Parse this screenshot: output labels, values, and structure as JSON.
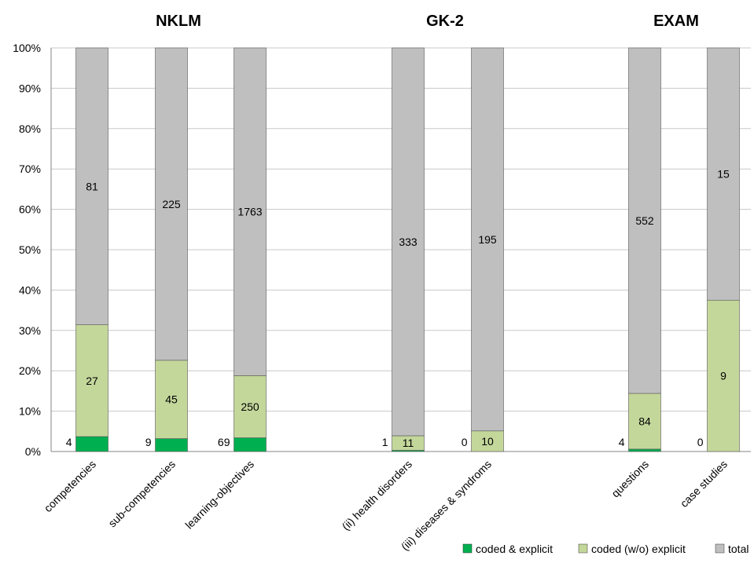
{
  "chart_data": {
    "type": "bar",
    "stacked": true,
    "normalized": true,
    "categories": [
      "competencies",
      "sub-competencies",
      "learning-objectives",
      "(ii) health disorders",
      "(iii) diseases & syndroms",
      "questions",
      "case studies"
    ],
    "group_titles": [
      "NKLM",
      "GK-2",
      "EXAM"
    ],
    "series": [
      {
        "name": "coded & explicit",
        "color": "#00b050",
        "counts": [
          4,
          9,
          69,
          1,
          0,
          4,
          0
        ]
      },
      {
        "name": "coded (w/o) explicit",
        "color": "#c4d79b",
        "counts": [
          27,
          45,
          250,
          11,
          10,
          84,
          9
        ]
      },
      {
        "name": "total",
        "color": "#bfbfbf",
        "counts": [
          81,
          225,
          1763,
          333,
          195,
          552,
          15
        ]
      }
    ],
    "percent_of_total": {
      "coded & explicit": [
        3.7,
        3.2,
        3.4,
        0.3,
        0.0,
        0.6,
        0.0
      ],
      "coded (w/o) explicit": [
        27.7,
        19.4,
        15.4,
        3.6,
        5.1,
        13.8,
        37.5
      ]
    },
    "yticks": [
      "0%",
      "10%",
      "20%",
      "30%",
      "40%",
      "50%",
      "60%",
      "70%",
      "80%",
      "90%",
      "100%"
    ],
    "ylim": [
      0,
      100
    ],
    "grid": true,
    "legend_position": "bottom-right"
  }
}
